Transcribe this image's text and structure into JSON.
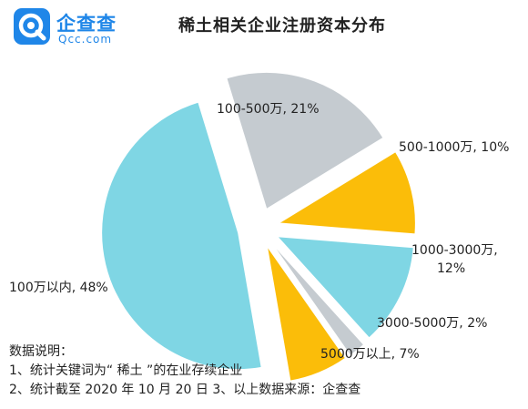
{
  "brand": {
    "name": "企查查",
    "domain": "Qcc.com",
    "color": "#1f86e8"
  },
  "chart_data": {
    "type": "pie",
    "title": "稀土相关企业注册资本分布",
    "slices": [
      {
        "label": "100-500万, 21%",
        "value": 21,
        "color": "#c5cbd0"
      },
      {
        "label": "500-1000万, 10%",
        "value": 10,
        "color": "#fbbd09"
      },
      {
        "label": "1000-3000万,",
        "label2": "12%",
        "value": 12,
        "color": "#7fd6e4"
      },
      {
        "label": "3000-5000万, 2%",
        "value": 2,
        "color": "#c5cbd0"
      },
      {
        "label": "5000万以上, 7%",
        "value": 7,
        "color": "#fbbd09"
      },
      {
        "label": "100万以内, 48%",
        "value": 48,
        "color": "#7fd6e4"
      }
    ]
  },
  "notes": {
    "heading": "数据说明：",
    "line1": "1、统计关键词为“ 稀土 ”的在业存续企业",
    "line2": "2、统计截至 2020 年 10 月 20 日  3、以上数据来源：企查查"
  }
}
